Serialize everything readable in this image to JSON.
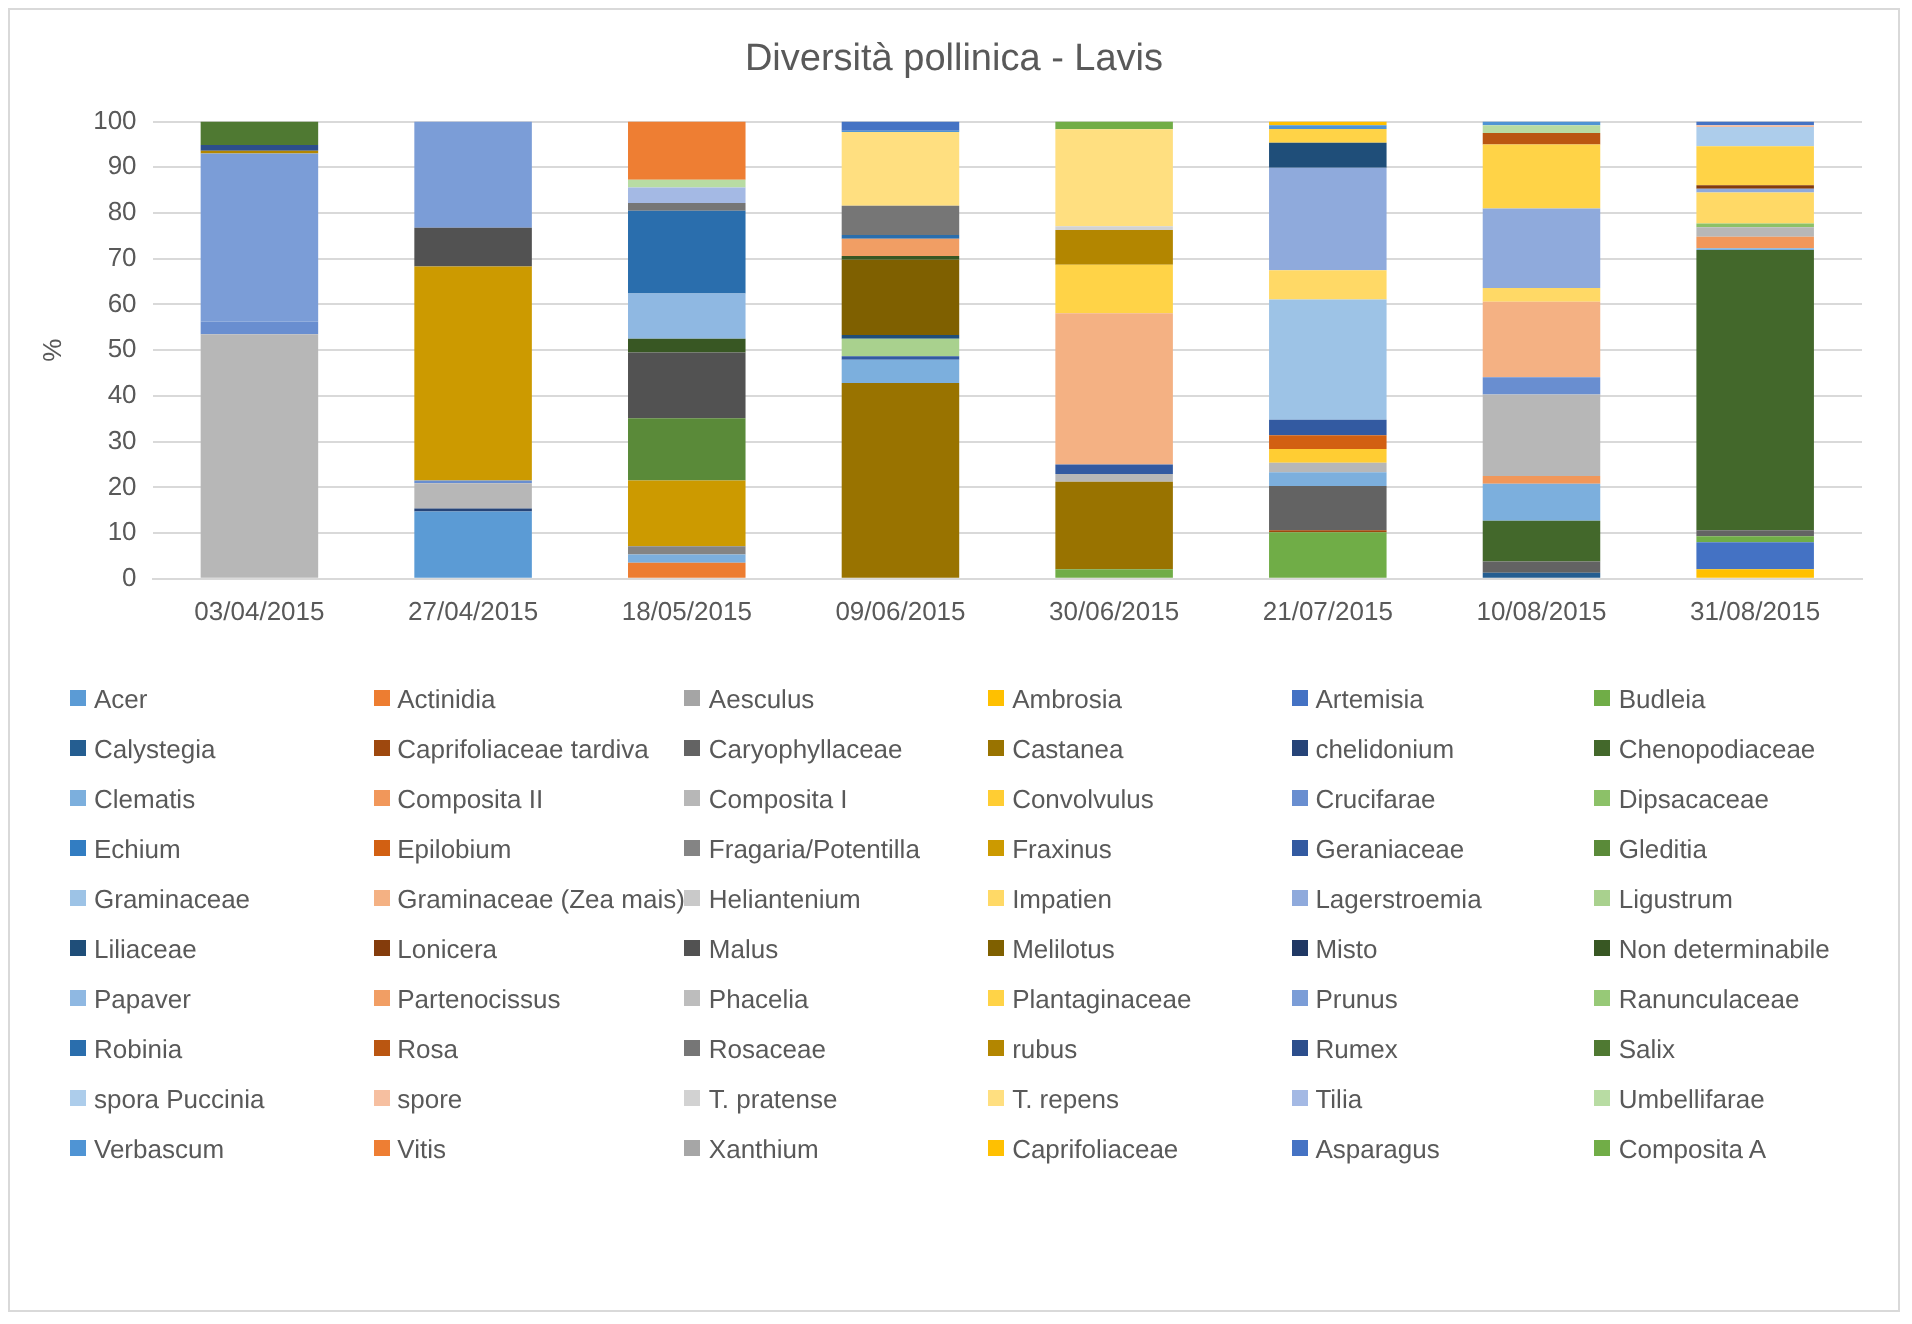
{
  "chart_data": {
    "type": "bar",
    "stacked": true,
    "title": "Diversità pollinica - Lavis",
    "ylabel": "%",
    "categories": [
      "03/04/2015",
      "27/04/2015",
      "18/05/2015",
      "09/06/2015",
      "30/06/2015",
      "21/07/2015",
      "10/08/2015",
      "31/08/2015"
    ],
    "ylim": [
      0,
      100
    ],
    "yticks": [
      0,
      10,
      20,
      30,
      40,
      50,
      60,
      70,
      80,
      90,
      100
    ],
    "grid": "y",
    "legend": "bottom",
    "series": [
      {
        "name": "Acer",
        "color": "#5b9bd5",
        "values": [
          null,
          14.7,
          null,
          null,
          null,
          null,
          null,
          null
        ]
      },
      {
        "name": "Actinidia",
        "color": "#ed7d31",
        "values": [
          null,
          null,
          3.5,
          null,
          null,
          null,
          null,
          null
        ]
      },
      {
        "name": "Aesculus",
        "color": "#a5a5a5",
        "values": [
          null,
          null,
          null,
          null,
          null,
          null,
          null,
          null
        ]
      },
      {
        "name": "Ambrosia",
        "color": "#ffc000",
        "values": [
          null,
          null,
          null,
          null,
          null,
          null,
          null,
          2.1
        ]
      },
      {
        "name": "Artemisia",
        "color": "#4472c4",
        "values": [
          null,
          null,
          null,
          null,
          null,
          null,
          null,
          5.9
        ]
      },
      {
        "name": "Budleia",
        "color": "#70ad47",
        "values": [
          null,
          null,
          null,
          null,
          2.1,
          10.2,
          null,
          1.3
        ]
      },
      {
        "name": "Calystegia",
        "color": "#255e91",
        "values": [
          null,
          null,
          null,
          null,
          null,
          null,
          1.3,
          null
        ]
      },
      {
        "name": "Caprifoliaceae tardiva",
        "color": "#9e480e",
        "values": [
          null,
          null,
          null,
          null,
          null,
          0.4,
          null,
          null
        ]
      },
      {
        "name": "Caryophyllaceae",
        "color": "#636363",
        "values": [
          null,
          null,
          null,
          null,
          null,
          9.7,
          2.5,
          1.3
        ]
      },
      {
        "name": "Castanea",
        "color": "#997300",
        "values": [
          null,
          null,
          null,
          42.8,
          19.1,
          null,
          null,
          null
        ]
      },
      {
        "name": "chelidonium",
        "color": "#264478",
        "values": [
          null,
          0.7,
          null,
          null,
          null,
          null,
          null,
          null
        ]
      },
      {
        "name": "Chenopodiaceae",
        "color": "#43682b",
        "values": [
          null,
          null,
          null,
          null,
          null,
          null,
          8.9,
          61.3
        ]
      },
      {
        "name": "Clematis",
        "color": "#7cafdd",
        "values": [
          null,
          null,
          1.8,
          5.1,
          null,
          3.0,
          8.1,
          0.4
        ]
      },
      {
        "name": "Composita II",
        "color": "#f1975a",
        "values": [
          null,
          null,
          null,
          null,
          null,
          null,
          1.7,
          2.5
        ]
      },
      {
        "name": "Composita I",
        "color": "#b7b7b7",
        "values": [
          53.5,
          5.5,
          null,
          null,
          1.7,
          2.1,
          17.8,
          2.1
        ]
      },
      {
        "name": "Convolvulus",
        "color": "#ffcd33",
        "values": [
          null,
          null,
          null,
          null,
          null,
          3.0,
          null,
          null
        ]
      },
      {
        "name": "Crucifarae",
        "color": "#698ed0",
        "values": [
          2.8,
          0.6,
          null,
          null,
          null,
          null,
          3.8,
          null
        ]
      },
      {
        "name": "Dipsacaceae",
        "color": "#8cc168",
        "values": [
          null,
          null,
          null,
          null,
          null,
          null,
          null,
          0.8
        ]
      },
      {
        "name": "Echium",
        "color": "#327dc2",
        "values": [
          null,
          null,
          null,
          null,
          null,
          null,
          null,
          null
        ]
      },
      {
        "name": "Epilobium",
        "color": "#d26012",
        "values": [
          null,
          null,
          null,
          null,
          null,
          3.0,
          null,
          null
        ]
      },
      {
        "name": "Fragaria/Potentilla",
        "color": "#848484",
        "values": [
          null,
          null,
          1.8,
          null,
          null,
          null,
          null,
          null
        ]
      },
      {
        "name": "Fraxinus",
        "color": "#cc9a00",
        "values": [
          null,
          46.8,
          14.4,
          null,
          null,
          null,
          null,
          null
        ]
      },
      {
        "name": "Geraniaceae",
        "color": "#335aa1",
        "values": [
          null,
          null,
          null,
          0.8,
          2.1,
          3.4,
          null,
          null
        ]
      },
      {
        "name": "Gleditia",
        "color": "#5a8a39",
        "values": [
          null,
          null,
          13.6,
          null,
          null,
          null,
          null,
          null
        ]
      },
      {
        "name": "Graminaceae",
        "color": "#9dc3e6",
        "values": [
          null,
          null,
          null,
          null,
          null,
          26.3,
          null,
          null
        ]
      },
      {
        "name": "Graminaceae (Zea mais)",
        "color": "#f4b183",
        "values": [
          null,
          null,
          null,
          null,
          33.1,
          null,
          16.5,
          null
        ]
      },
      {
        "name": "Heliantenium",
        "color": "#c9c9c9",
        "values": [
          null,
          null,
          null,
          null,
          null,
          null,
          null,
          null
        ]
      },
      {
        "name": "Impatien",
        "color": "#ffd966",
        "values": [
          null,
          null,
          null,
          null,
          null,
          6.4,
          3.0,
          6.8
        ]
      },
      {
        "name": "Lagerstroemia",
        "color": "#8faadc",
        "values": [
          null,
          null,
          null,
          null,
          null,
          22.4,
          17.4,
          0.8
        ]
      },
      {
        "name": "Ligustrum",
        "color": "#a9d18e",
        "values": [
          null,
          null,
          null,
          3.8,
          null,
          null,
          null,
          null
        ]
      },
      {
        "name": "Liliaceae",
        "color": "#1f4e79",
        "values": [
          null,
          null,
          null,
          0.8,
          null,
          5.5,
          null,
          null
        ]
      },
      {
        "name": "Lonicera",
        "color": "#843c0c",
        "values": [
          null,
          null,
          null,
          null,
          null,
          null,
          null,
          0.8
        ]
      },
      {
        "name": "Malus",
        "color": "#525252",
        "values": [
          null,
          8.5,
          14.4,
          null,
          null,
          null,
          null,
          null
        ]
      },
      {
        "name": "Melilotus",
        "color": "#7f6000",
        "values": [
          null,
          null,
          null,
          16.5,
          null,
          null,
          null,
          null
        ]
      },
      {
        "name": "Misto",
        "color": "#203864",
        "values": [
          null,
          null,
          null,
          null,
          null,
          null,
          null,
          null
        ]
      },
      {
        "name": "Non determinabile",
        "color": "#385723",
        "values": [
          null,
          null,
          3.0,
          0.8,
          null,
          null,
          null,
          null
        ]
      },
      {
        "name": "Papaver",
        "color": "#8fb8e2",
        "values": [
          null,
          null,
          9.9,
          null,
          null,
          null,
          null,
          null
        ]
      },
      {
        "name": "Partenocissus",
        "color": "#f19e64",
        "values": [
          null,
          null,
          null,
          3.8,
          null,
          null,
          null,
          null
        ]
      },
      {
        "name": "Phacelia",
        "color": "#bdbdbd",
        "values": [
          null,
          null,
          null,
          null,
          null,
          null,
          null,
          null
        ]
      },
      {
        "name": "Plantaginaceae",
        "color": "#ffd347",
        "values": [
          null,
          null,
          null,
          null,
          10.6,
          3.0,
          14.0,
          8.5
        ]
      },
      {
        "name": "Prunus",
        "color": "#7b9dd7",
        "values": [
          36.7,
          23.2,
          null,
          null,
          null,
          null,
          null,
          null
        ]
      },
      {
        "name": "Ranunculaceae",
        "color": "#97c977",
        "values": [
          null,
          null,
          null,
          null,
          null,
          null,
          null,
          null
        ]
      },
      {
        "name": "Robinia",
        "color": "#2a6ead",
        "values": [
          null,
          null,
          18.1,
          0.8,
          null,
          null,
          null,
          null
        ]
      },
      {
        "name": "Rosa",
        "color": "#ba5611",
        "values": [
          null,
          null,
          null,
          null,
          null,
          null,
          2.5,
          null
        ]
      },
      {
        "name": "Rosaceae",
        "color": "#767676",
        "values": [
          null,
          null,
          1.7,
          6.4,
          null,
          null,
          null,
          null
        ]
      },
      {
        "name": "rubus",
        "color": "#b38600",
        "values": [
          0.6,
          null,
          null,
          null,
          7.6,
          null,
          null,
          null
        ]
      },
      {
        "name": "Rumex",
        "color": "#2c4e8c",
        "values": [
          1.3,
          null,
          null,
          null,
          null,
          null,
          null,
          null
        ]
      },
      {
        "name": "Salix",
        "color": "#4f7932",
        "values": [
          5.1,
          null,
          null,
          null,
          null,
          null,
          null,
          null
        ]
      },
      {
        "name": "spora Puccinia",
        "color": "#adcdeb",
        "values": [
          null,
          null,
          null,
          null,
          null,
          null,
          null,
          4.2
        ]
      },
      {
        "name": "spore",
        "color": "#f6bfa0",
        "values": [
          null,
          null,
          null,
          null,
          null,
          null,
          null,
          0.4
        ]
      },
      {
        "name": "T. pratense",
        "color": "#d2d2d2",
        "values": [
          null,
          null,
          null,
          null,
          0.8,
          null,
          null,
          null
        ]
      },
      {
        "name": "T. repens",
        "color": "#ffdf80",
        "values": [
          null,
          null,
          null,
          16.1,
          21.2,
          null,
          null,
          null
        ]
      },
      {
        "name": "Tilia",
        "color": "#a4b9e4",
        "values": [
          null,
          null,
          3.4,
          null,
          null,
          null,
          null,
          null
        ]
      },
      {
        "name": "Umbellifarae",
        "color": "#b8dca3",
        "values": [
          null,
          null,
          1.7,
          null,
          null,
          null,
          1.7,
          null
        ]
      },
      {
        "name": "Verbascum",
        "color": "#4f94d4",
        "values": [
          null,
          null,
          null,
          0.3,
          null,
          0.8,
          0.8,
          null
        ]
      },
      {
        "name": "Vitis",
        "color": "#ee7e33",
        "values": [
          null,
          null,
          12.7,
          null,
          null,
          null,
          null,
          null
        ]
      },
      {
        "name": "Xanthium",
        "color": "#a6a6a6",
        "values": [
          null,
          null,
          null,
          null,
          null,
          null,
          null,
          null
        ]
      },
      {
        "name": "Caprifoliaceae",
        "color": "#ffc001",
        "values": [
          null,
          null,
          null,
          null,
          null,
          0.8,
          null,
          null
        ]
      },
      {
        "name": "Asparagus",
        "color": "#4573c4",
        "values": [
          null,
          null,
          null,
          2.0,
          null,
          null,
          null,
          0.8
        ]
      },
      {
        "name": "Composita A",
        "color": "#71ad47",
        "values": [
          null,
          null,
          null,
          null,
          1.7,
          null,
          null,
          null
        ]
      }
    ]
  }
}
